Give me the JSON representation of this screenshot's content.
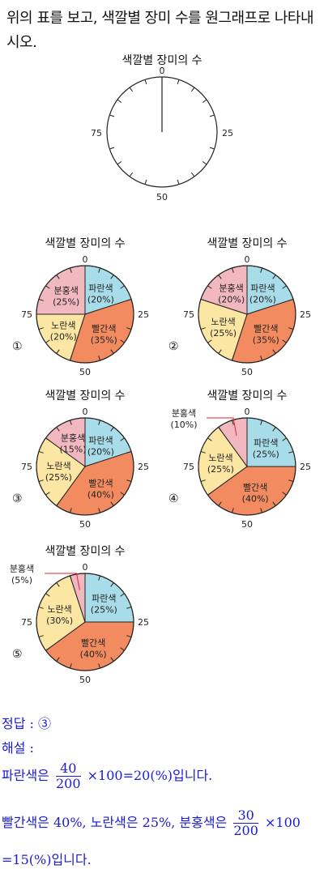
{
  "question": "위의 표를 보고, 색깔별 장미 수를 원그래프로 나타내시오.",
  "blank_chart": {
    "title": "색깔별 장미의 수",
    "ticks": [
      "0",
      "25",
      "50",
      "75"
    ]
  },
  "chart_data": [
    {
      "type": "pie",
      "option": "①",
      "title": "색깔별 장미의 수",
      "ticks": [
        "0",
        "25",
        "50",
        "75"
      ],
      "slices": [
        {
          "name": "파란색",
          "label": "(20%)",
          "value": 20,
          "color": "#a8dce8"
        },
        {
          "name": "빨간색",
          "label": "(35%)",
          "value": 35,
          "color": "#f28b5f"
        },
        {
          "name": "노란색",
          "label": "(20%)",
          "value": 20,
          "color": "#fce6a4"
        },
        {
          "name": "분홍색",
          "label": "(25%)",
          "value": 25,
          "color": "#f2b8c0"
        }
      ]
    },
    {
      "type": "pie",
      "option": "②",
      "title": "색깔별 장미의 수",
      "ticks": [
        "0",
        "25",
        "50",
        "75"
      ],
      "slices": [
        {
          "name": "파란색",
          "label": "(20%)",
          "value": 20,
          "color": "#a8dce8"
        },
        {
          "name": "빨간색",
          "label": "(35%)",
          "value": 35,
          "color": "#f28b5f"
        },
        {
          "name": "노란색",
          "label": "(25%)",
          "value": 25,
          "color": "#fce6a4"
        },
        {
          "name": "분홍색",
          "label": "(20%)",
          "value": 20,
          "color": "#f2b8c0"
        }
      ]
    },
    {
      "type": "pie",
      "option": "③",
      "title": "색깔별 장미의 수",
      "ticks": [
        "0",
        "25",
        "50",
        "75"
      ],
      "slices": [
        {
          "name": "파란색",
          "label": "(20%)",
          "value": 20,
          "color": "#a8dce8"
        },
        {
          "name": "빨간색",
          "label": "(40%)",
          "value": 40,
          "color": "#f28b5f"
        },
        {
          "name": "노란색",
          "label": "(25%)",
          "value": 25,
          "color": "#fce6a4"
        },
        {
          "name": "분홍색",
          "label": "(15%)",
          "value": 15,
          "color": "#f2b8c0"
        }
      ]
    },
    {
      "type": "pie",
      "option": "④",
      "title": "색깔별 장미의 수",
      "ticks": [
        "0",
        "25",
        "50",
        "75"
      ],
      "slices": [
        {
          "name": "파란색",
          "label": "(25%)",
          "value": 25,
          "color": "#a8dce8"
        },
        {
          "name": "빨간색",
          "label": "(40%)",
          "value": 40,
          "color": "#f28b5f"
        },
        {
          "name": "노란색",
          "label": "(25%)",
          "value": 25,
          "color": "#fce6a4"
        },
        {
          "name": "분홍색",
          "label": "(10%)",
          "value": 10,
          "color": "#f2b8c0"
        }
      ]
    },
    {
      "type": "pie",
      "option": "⑤",
      "title": "색깔별 장미의 수",
      "ticks": [
        "0",
        "25",
        "50",
        "75"
      ],
      "slices": [
        {
          "name": "파란색",
          "label": "(25%)",
          "value": 25,
          "color": "#a8dce8"
        },
        {
          "name": "빨간색",
          "label": "(40%)",
          "value": 40,
          "color": "#f28b5f"
        },
        {
          "name": "노란색",
          "label": "(30%)",
          "value": 30,
          "color": "#fce6a4"
        },
        {
          "name": "분홍색",
          "label": "(5%)",
          "value": 5,
          "color": "#f2b8c0"
        }
      ]
    }
  ],
  "answer": {
    "label": "정답 : ③",
    "expl_title": "해설 :",
    "line1_pre": "파란색은",
    "line1_num": "40",
    "line1_den": "200",
    "line1_post": "×100=20(%)입니다.",
    "line2_pre": "빨간색은 40%, 노란색은 25%, 분홍색은",
    "line2_num": "30",
    "line2_den": "200",
    "line2_post": "×100",
    "line3": "=15(%)입니다."
  }
}
